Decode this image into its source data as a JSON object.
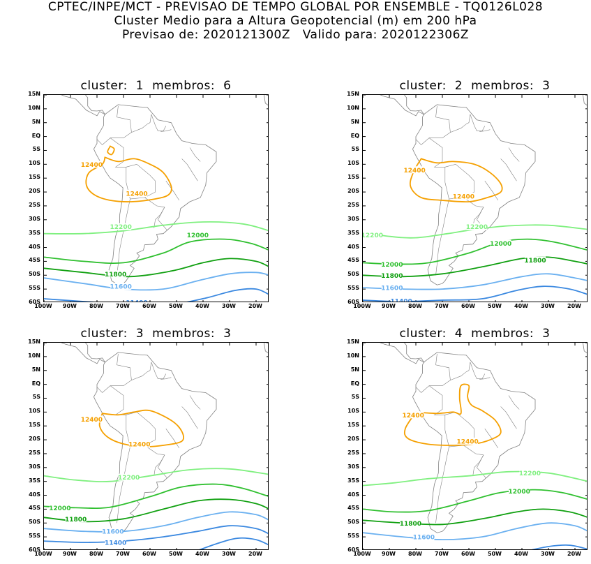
{
  "header": {
    "line1": "CPTEC/INPE/MCT - PREVISAO DE TEMPO GLOBAL POR ENSEMBLE - TQ0126L028",
    "line2": "Cluster Medio para a Altura Geopotencial (m) em 200 hPa",
    "line3_prefix": "Previsao de: 2020121300Z",
    "line3_suffix": "Valido para: 2020122306Z"
  },
  "axes": {
    "y_ticks": [
      "15N",
      "10N",
      "5N",
      "EQ",
      "5S",
      "10S",
      "15S",
      "20S",
      "25S",
      "30S",
      "35S",
      "40S",
      "45S",
      "50S",
      "55S",
      "60S"
    ],
    "x_ticks": [
      "100W",
      "90W",
      "80W",
      "70W",
      "60W",
      "50W",
      "40W",
      "30W",
      "20W"
    ]
  },
  "colors": {
    "c12400": "#f5a000",
    "c12200": "#80f080",
    "c12000": "#30c030",
    "c11800": "#10a010",
    "c11600": "#6ab0f0",
    "c11400": "#3a88e0",
    "land": "#808080"
  },
  "panels": [
    {
      "cluster_label": "cluster:",
      "cluster_num": "1",
      "members_label": "membros:",
      "members_num": "6",
      "labels": {
        "l12400a": "12400",
        "l12400b": "12400",
        "l12200": "12200",
        "l12000": "12000",
        "l11800": "11800",
        "l11600": "11600",
        "l11400": "11400"
      }
    },
    {
      "cluster_label": "cluster:",
      "cluster_num": "2",
      "members_label": "membros:",
      "members_num": "3",
      "labels": {
        "l12400a": "12400",
        "l12400b": "12400",
        "l12200a": "12200",
        "l12200b": "12200",
        "l12000a": "12000",
        "l12000b": "12000",
        "l11800a": "11800",
        "l11800b": "11800",
        "l11600": "11600",
        "l11400": "11400"
      }
    },
    {
      "cluster_label": "cluster:",
      "cluster_num": "3",
      "members_label": "membros:",
      "members_num": "3",
      "labels": {
        "l12400a": "12400",
        "l12400b": "12400",
        "l12200": "12200",
        "l12000": "12000",
        "l11800": "11800",
        "l11600": "11600",
        "l11400": "11400"
      }
    },
    {
      "cluster_label": "cluster:",
      "cluster_num": "4",
      "members_label": "membros:",
      "members_num": "3",
      "labels": {
        "l12400a": "12400",
        "l12400b": "12400",
        "l12200": "12200",
        "l12000": "12000",
        "l11800": "11800",
        "l11600": "11600"
      }
    }
  ]
}
